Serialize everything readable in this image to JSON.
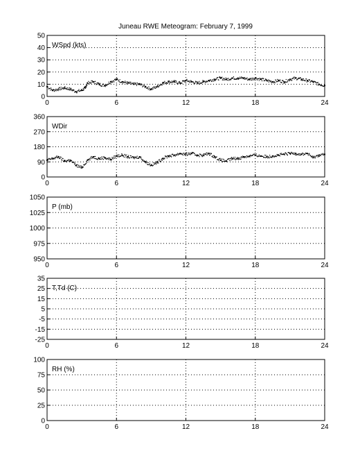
{
  "figure": {
    "title": "Juneau RWE Meteogram:  February  7, 1999"
  },
  "chart_data": [
    {
      "type": "scatter",
      "label": "WSpd (kts)",
      "xlim": [
        0,
        24
      ],
      "ylim": [
        0,
        50
      ],
      "xticks": [
        0,
        6,
        12,
        18,
        24
      ],
      "yticks": [
        0,
        10,
        20,
        30,
        40,
        50
      ],
      "grid": true,
      "series": [
        {
          "x": [
            0,
            0.5,
            1,
            1.5,
            2,
            2.5,
            3,
            3.3,
            3.5,
            4,
            4.5,
            5,
            5.5,
            6,
            6.5,
            7,
            7.5,
            8,
            8.5,
            9,
            9.5,
            10,
            10.5,
            11,
            11.5,
            12,
            12.5,
            13,
            13.5,
            14,
            14.5,
            15,
            15.5,
            16,
            16.5,
            17,
            17.5,
            18,
            18.5,
            19,
            19.5,
            20,
            20.5,
            21,
            21.5,
            22,
            22.5,
            23,
            23.5,
            24
          ],
          "y": [
            8,
            5,
            6,
            7,
            6,
            4,
            5,
            7,
            11,
            12,
            10,
            9,
            12,
            14,
            12,
            11,
            10,
            10,
            8,
            6,
            8,
            11,
            12,
            12,
            11,
            13,
            12,
            11,
            12,
            13,
            14,
            15,
            14,
            15,
            15,
            15,
            14,
            15,
            14,
            13,
            12,
            13,
            12,
            14,
            15,
            14,
            13,
            12,
            10,
            9
          ]
        }
      ]
    },
    {
      "type": "scatter",
      "label": "WDir",
      "xlim": [
        0,
        24
      ],
      "ylim": [
        0,
        360
      ],
      "xticks": [
        0,
        6,
        12,
        18,
        24
      ],
      "yticks": [
        0,
        90,
        180,
        270,
        360
      ],
      "grid": true,
      "series": [
        {
          "x": [
            0,
            0.5,
            1,
            1.5,
            2,
            2.5,
            3,
            3.5,
            4,
            4.5,
            5,
            5.5,
            6,
            6.5,
            7,
            7.5,
            8,
            8.5,
            9,
            9.5,
            10,
            10.5,
            11,
            11.5,
            12,
            12.5,
            13,
            13.5,
            14,
            14.5,
            15,
            15.5,
            16,
            16.5,
            17,
            17.5,
            18,
            18.5,
            19,
            19.5,
            20,
            20.5,
            21,
            21.5,
            22,
            22.5,
            23,
            23.5,
            24
          ],
          "y": [
            100,
            110,
            120,
            95,
            100,
            70,
            55,
            100,
            120,
            110,
            115,
            105,
            125,
            130,
            120,
            115,
            120,
            90,
            70,
            85,
            110,
            125,
            130,
            140,
            135,
            140,
            130,
            130,
            140,
            120,
            100,
            95,
            110,
            110,
            120,
            125,
            130,
            125,
            120,
            125,
            130,
            135,
            140,
            140,
            135,
            140,
            115,
            130,
            135
          ]
        }
      ]
    },
    {
      "type": "scatter",
      "label": "P (mb)",
      "xlim": [
        0,
        24
      ],
      "ylim": [
        950,
        1050
      ],
      "xticks": [
        0,
        6,
        12,
        18,
        24
      ],
      "yticks": [
        950,
        975,
        1000,
        1025,
        1050
      ],
      "grid": true,
      "series": []
    },
    {
      "type": "scatter",
      "label": "T,Td (C)",
      "xlim": [
        0,
        24
      ],
      "ylim": [
        -25,
        35
      ],
      "xticks": [
        0,
        6,
        12,
        18,
        24
      ],
      "yticks": [
        -25,
        -15,
        -5,
        5,
        15,
        25,
        35
      ],
      "grid": true,
      "series": []
    },
    {
      "type": "scatter",
      "label": "RH (%)",
      "xlim": [
        0,
        24
      ],
      "ylim": [
        0,
        100
      ],
      "xticks": [
        0,
        6,
        12,
        18,
        24
      ],
      "yticks": [
        0,
        25,
        50,
        75,
        100
      ],
      "grid": true,
      "series": []
    }
  ]
}
